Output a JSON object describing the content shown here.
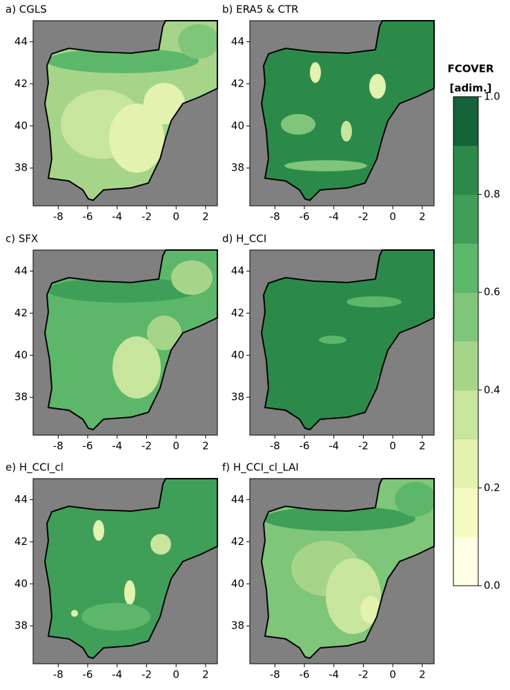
{
  "panels": [
    {
      "title": "a) CGLS"
    },
    {
      "title": "b) ERA5 & CTR"
    },
    {
      "title": "c) SFX"
    },
    {
      "title": "d) H_CCI"
    },
    {
      "title": "e) H_CCI_cl"
    },
    {
      "title": "f) H_CCI_cl_LAI"
    }
  ],
  "xticks": [
    -8,
    -6,
    -4,
    -2,
    0,
    2
  ],
  "yticks": [
    38,
    40,
    42,
    44
  ],
  "xlim": [
    -9.7,
    2.8
  ],
  "ylim": [
    36.2,
    45
  ],
  "colorbar": {
    "title": "FCOVER",
    "unit": "[adim.]",
    "lim": [
      0,
      1
    ],
    "ticks": [
      {
        "value": 0,
        "label": "0.0"
      },
      0.2,
      0.4,
      0.6,
      0.8,
      {
        "value": 1,
        "label": "1.0"
      }
    ],
    "colors": [
      "#ffffe5",
      "#f4fbc2",
      "#e3f2ae",
      "#c7e59c",
      "#a6d58a",
      "#7fc57a",
      "#5db76a",
      "#3f9f58",
      "#2b8a4a",
      "#14633a"
    ]
  }
}
